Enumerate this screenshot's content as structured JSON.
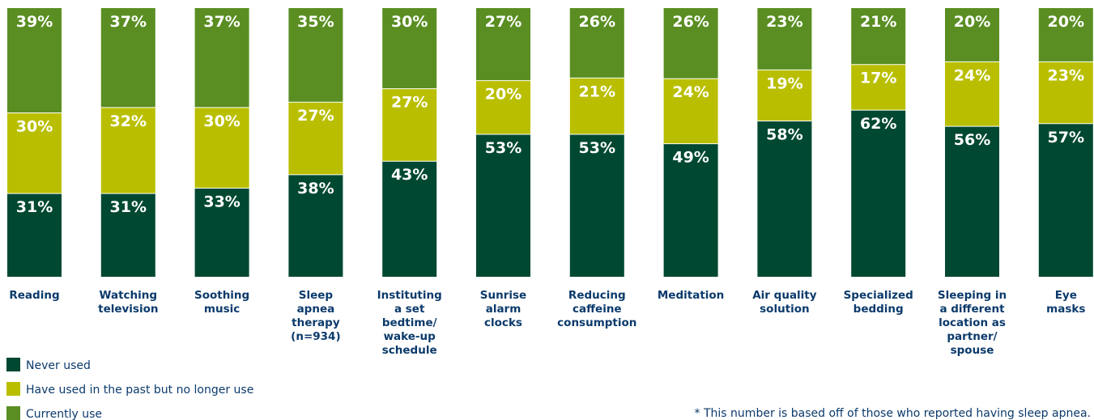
{
  "chart_data": {
    "type": "bar",
    "stacked": true,
    "normalized": true,
    "categories": [
      [
        "Reading"
      ],
      [
        "Watching",
        "television"
      ],
      [
        "Soothing",
        "music"
      ],
      [
        "Sleep",
        "apnea",
        "therapy",
        "(n=934)"
      ],
      [
        "Instituting",
        "a set",
        "bedtime/",
        "wake-up",
        "schedule"
      ],
      [
        "Sunrise",
        "alarm",
        "clocks"
      ],
      [
        "Reducing",
        "caffeine",
        "consumption"
      ],
      [
        "Meditation"
      ],
      [
        "Air quality",
        "solution"
      ],
      [
        "Specialized",
        "bedding"
      ],
      [
        "Sleeping in",
        "a different",
        "location as",
        "partner/",
        "spouse"
      ],
      [
        "Eye",
        "masks"
      ]
    ],
    "series": [
      {
        "name": "Never used",
        "color": "#004831",
        "values": [
          31,
          31,
          33,
          38,
          43,
          53,
          53,
          49,
          58,
          62,
          56,
          57
        ]
      },
      {
        "name": "Have used in the past but no longer use",
        "color": "#b9bf00",
        "values": [
          30,
          32,
          30,
          27,
          27,
          20,
          21,
          24,
          19,
          17,
          24,
          23
        ]
      },
      {
        "name": "Currently use",
        "color": "#5a8e22",
        "values": [
          39,
          37,
          37,
          35,
          30,
          27,
          26,
          26,
          23,
          21,
          20,
          20
        ]
      }
    ],
    "value_suffix": "%",
    "legend_position": "bottom-left",
    "grid": false
  },
  "footnote": "* This number is based off of those who reported having sleep apnea."
}
